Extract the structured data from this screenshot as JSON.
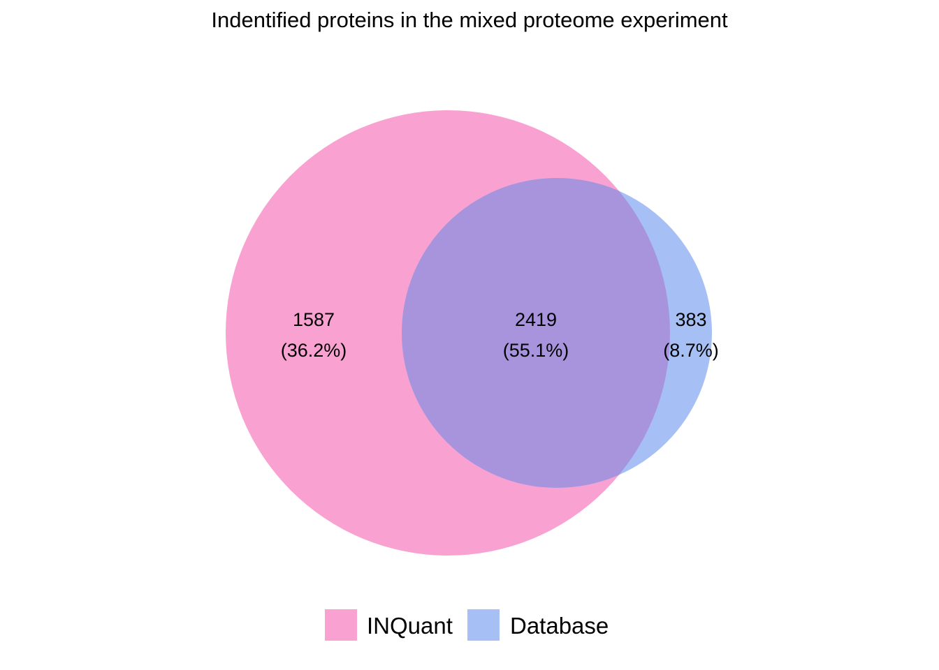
{
  "title": "Indentified proteins in the mixed proteome experiment",
  "sets": [
    {
      "name": "INQuant",
      "color": "#f9a1d1"
    },
    {
      "name": "Database",
      "color": "#a6bff4"
    }
  ],
  "overlap_color": "#a894dd",
  "regions": [
    {
      "id": "inquant_only",
      "count": "1587",
      "percent": "(36.2%)"
    },
    {
      "id": "both",
      "count": "2419",
      "percent": "(55.1%)"
    },
    {
      "id": "database_only",
      "count": "383",
      "percent": "(8.7%)"
    }
  ]
}
